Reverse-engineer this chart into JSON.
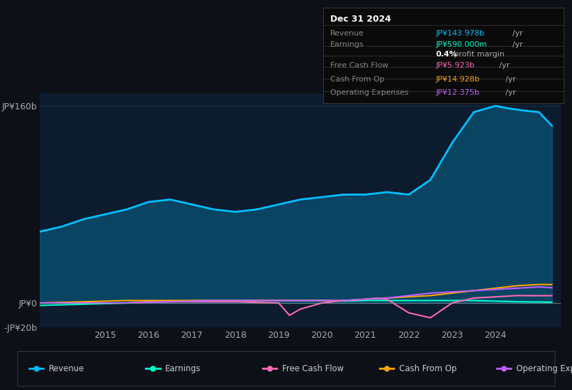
{
  "bg_color": "#0d1117",
  "plot_bg_color": "#0d1b2e",
  "title_box": {
    "date": "Dec 31 2024",
    "rows": [
      {
        "label": "Revenue",
        "value": "JP¥143.978b",
        "value_color": "#00bfff"
      },
      {
        "label": "Earnings",
        "value": "JP¥590.000m",
        "value_color": "#00ffcc"
      },
      {
        "label": "",
        "value": "0.4% profit margin",
        "value_color": "#ffffff"
      },
      {
        "label": "Free Cash Flow",
        "value": "JP¥5.923b",
        "value_color": "#ff69b4"
      },
      {
        "label": "Cash From Op",
        "value": "JP¥14.928b",
        "value_color": "#ffa500"
      },
      {
        "label": "Operating Expenses",
        "value": "JP¥12.375b",
        "value_color": "#bf5fff"
      }
    ]
  },
  "ylim": [
    -20,
    170
  ],
  "yticks": [
    -20,
    0,
    160
  ],
  "ytick_labels": [
    "-JP¥20b",
    "JP¥0",
    "JP¥160b"
  ],
  "xticks": [
    2015,
    2016,
    2017,
    2018,
    2019,
    2020,
    2021,
    2022,
    2023,
    2024
  ],
  "xlim": [
    2013.5,
    2025.5
  ],
  "revenue": {
    "x": [
      2013.5,
      2014,
      2014.5,
      2015,
      2015.5,
      2016,
      2016.5,
      2017,
      2017.5,
      2018,
      2018.5,
      2019,
      2019.5,
      2020,
      2020.5,
      2021,
      2021.5,
      2022,
      2022.5,
      2023,
      2023.5,
      2024,
      2024.3,
      2024.7,
      2025,
      2025.3
    ],
    "y": [
      58,
      62,
      68,
      72,
      76,
      82,
      84,
      80,
      76,
      74,
      76,
      80,
      84,
      86,
      88,
      88,
      90,
      88,
      100,
      130,
      155,
      160,
      158,
      156,
      155,
      144
    ],
    "color": "#00bfff",
    "fill_alpha": 0.25,
    "linewidth": 2
  },
  "earnings": {
    "x": [
      2013.5,
      2014,
      2014.5,
      2015,
      2015.5,
      2016,
      2016.5,
      2017,
      2017.5,
      2018,
      2018.5,
      2019,
      2019.5,
      2020,
      2020.5,
      2021,
      2021.5,
      2022,
      2022.5,
      2023,
      2023.5,
      2024,
      2024.5,
      2025,
      2025.3
    ],
    "y": [
      -2,
      -1.5,
      -1,
      -0.5,
      0,
      1,
      1.5,
      2,
      2,
      2,
      2,
      2,
      2,
      2,
      1.5,
      2,
      2,
      2,
      2,
      2,
      2,
      1.5,
      1,
      0.8,
      0.59
    ],
    "color": "#00ffcc",
    "linewidth": 1.5
  },
  "free_cash_flow": {
    "x": [
      2013.5,
      2014,
      2014.5,
      2015,
      2015.5,
      2016,
      2016.5,
      2017,
      2017.5,
      2018,
      2018.5,
      2019,
      2019.25,
      2019.5,
      2020,
      2020.5,
      2021,
      2021.25,
      2021.5,
      2022,
      2022.5,
      2023,
      2023.5,
      2024,
      2024.5,
      2025,
      2025.3
    ],
    "y": [
      0,
      0,
      0,
      0,
      0,
      1,
      1,
      1,
      1,
      1,
      0.5,
      0,
      -10,
      -5,
      0,
      2,
      3,
      4,
      3,
      -8,
      -12,
      0,
      4,
      5,
      6,
      5.9,
      5.923
    ],
    "color": "#ff69b4",
    "linewidth": 1.5
  },
  "cash_from_op": {
    "x": [
      2013.5,
      2014,
      2014.5,
      2015,
      2015.5,
      2016,
      2016.5,
      2017,
      2017.5,
      2018,
      2018.5,
      2019,
      2019.5,
      2020,
      2020.5,
      2021,
      2021.5,
      2022,
      2022.5,
      2023,
      2023.5,
      2024,
      2024.5,
      2025,
      2025.3
    ],
    "y": [
      0,
      0.5,
      1,
      1.5,
      2,
      2,
      2,
      2,
      2,
      2,
      2,
      2,
      2,
      2,
      2,
      3,
      4,
      5,
      6,
      8,
      10,
      12,
      14,
      15,
      14.928
    ],
    "color": "#ffa500",
    "linewidth": 1.5
  },
  "operating_expenses": {
    "x": [
      2013.5,
      2014,
      2014.5,
      2015,
      2015.5,
      2016,
      2016.5,
      2017,
      2017.5,
      2018,
      2018.5,
      2019,
      2019.5,
      2020,
      2020.5,
      2021,
      2021.5,
      2022,
      2022.5,
      2023,
      2023.5,
      2024,
      2024.5,
      2025,
      2025.3
    ],
    "y": [
      0,
      0,
      0,
      0,
      0,
      0.5,
      1,
      1.5,
      2,
      2,
      2,
      2,
      2,
      2,
      2,
      3,
      4,
      6,
      8,
      9,
      10,
      11,
      12,
      13,
      12.375
    ],
    "color": "#bf5fff",
    "linewidth": 1.5
  },
  "legend": [
    {
      "label": "Revenue",
      "color": "#00bfff"
    },
    {
      "label": "Earnings",
      "color": "#00ffcc"
    },
    {
      "label": "Free Cash Flow",
      "color": "#ff69b4"
    },
    {
      "label": "Cash From Op",
      "color": "#ffa500"
    },
    {
      "label": "Operating Expenses",
      "color": "#bf5fff"
    }
  ]
}
